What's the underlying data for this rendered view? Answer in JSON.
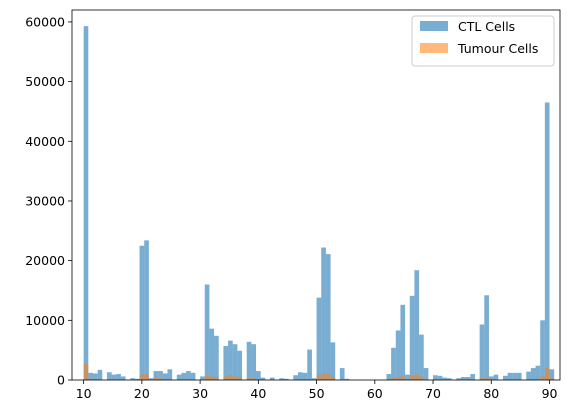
{
  "chart_data": {
    "type": "bar",
    "subtype": "overlaid-histogram",
    "xlim": [
      8.0,
      91.8
    ],
    "ylim": [
      0,
      62000
    ],
    "xticks": [
      10,
      20,
      30,
      40,
      50,
      60,
      70,
      80,
      90
    ],
    "yticks": [
      0,
      10000,
      20000,
      30000,
      40000,
      50000,
      60000
    ],
    "bin_width": 0.8,
    "legend_position": "upper-right",
    "grid": false,
    "series": [
      {
        "name": "CTL Cells",
        "color": "#1f77b4",
        "alpha": 0.6,
        "bins": [
          {
            "x": 10.0,
            "y": 59300
          },
          {
            "x": 10.8,
            "y": 1200
          },
          {
            "x": 11.6,
            "y": 1100
          },
          {
            "x": 12.4,
            "y": 1700
          },
          {
            "x": 14.0,
            "y": 1300
          },
          {
            "x": 14.8,
            "y": 900
          },
          {
            "x": 15.6,
            "y": 1000
          },
          {
            "x": 16.4,
            "y": 600
          },
          {
            "x": 18.0,
            "y": 300
          },
          {
            "x": 18.8,
            "y": 200
          },
          {
            "x": 19.6,
            "y": 22500
          },
          {
            "x": 20.4,
            "y": 23400
          },
          {
            "x": 21.2,
            "y": 300
          },
          {
            "x": 22.0,
            "y": 1500
          },
          {
            "x": 22.8,
            "y": 1500
          },
          {
            "x": 23.6,
            "y": 1100
          },
          {
            "x": 24.4,
            "y": 1800
          },
          {
            "x": 26.0,
            "y": 900
          },
          {
            "x": 26.8,
            "y": 1200
          },
          {
            "x": 27.6,
            "y": 1500
          },
          {
            "x": 28.4,
            "y": 1200
          },
          {
            "x": 30.0,
            "y": 600
          },
          {
            "x": 30.8,
            "y": 16000
          },
          {
            "x": 31.6,
            "y": 8600
          },
          {
            "x": 32.4,
            "y": 7400
          },
          {
            "x": 34.0,
            "y": 5700
          },
          {
            "x": 34.8,
            "y": 6600
          },
          {
            "x": 35.6,
            "y": 6000
          },
          {
            "x": 36.4,
            "y": 4900
          },
          {
            "x": 38.0,
            "y": 6400
          },
          {
            "x": 38.8,
            "y": 6000
          },
          {
            "x": 39.6,
            "y": 1500
          },
          {
            "x": 40.4,
            "y": 400
          },
          {
            "x": 42.0,
            "y": 400
          },
          {
            "x": 43.6,
            "y": 300
          },
          {
            "x": 44.4,
            "y": 200
          },
          {
            "x": 46.0,
            "y": 800
          },
          {
            "x": 46.8,
            "y": 1300
          },
          {
            "x": 47.6,
            "y": 1200
          },
          {
            "x": 48.4,
            "y": 5100
          },
          {
            "x": 49.2,
            "y": 300
          },
          {
            "x": 50.0,
            "y": 13800
          },
          {
            "x": 50.8,
            "y": 22200
          },
          {
            "x": 51.6,
            "y": 21100
          },
          {
            "x": 52.4,
            "y": 6300
          },
          {
            "x": 54.0,
            "y": 2000
          },
          {
            "x": 54.8,
            "y": 200
          },
          {
            "x": 62.0,
            "y": 1000
          },
          {
            "x": 62.8,
            "y": 5400
          },
          {
            "x": 63.6,
            "y": 8300
          },
          {
            "x": 64.4,
            "y": 12600
          },
          {
            "x": 65.2,
            "y": 900
          },
          {
            "x": 66.0,
            "y": 14100
          },
          {
            "x": 66.8,
            "y": 18400
          },
          {
            "x": 67.6,
            "y": 7600
          },
          {
            "x": 68.4,
            "y": 2000
          },
          {
            "x": 70.0,
            "y": 800
          },
          {
            "x": 70.8,
            "y": 700
          },
          {
            "x": 71.6,
            "y": 400
          },
          {
            "x": 72.4,
            "y": 300
          },
          {
            "x": 74.0,
            "y": 300
          },
          {
            "x": 74.8,
            "y": 500
          },
          {
            "x": 75.6,
            "y": 500
          },
          {
            "x": 76.4,
            "y": 1000
          },
          {
            "x": 78.0,
            "y": 9300
          },
          {
            "x": 78.8,
            "y": 14200
          },
          {
            "x": 79.6,
            "y": 600
          },
          {
            "x": 80.4,
            "y": 900
          },
          {
            "x": 82.0,
            "y": 700
          },
          {
            "x": 82.8,
            "y": 1200
          },
          {
            "x": 83.6,
            "y": 1200
          },
          {
            "x": 84.4,
            "y": 1200
          },
          {
            "x": 86.0,
            "y": 1400
          },
          {
            "x": 86.8,
            "y": 2000
          },
          {
            "x": 87.6,
            "y": 2400
          },
          {
            "x": 88.4,
            "y": 10000
          },
          {
            "x": 89.2,
            "y": 46500
          },
          {
            "x": 90.0,
            "y": 1800
          }
        ]
      },
      {
        "name": "Tumour Cells",
        "color": "#ff7f0e",
        "alpha": 0.55,
        "bins": [
          {
            "x": 10.0,
            "y": 2700
          },
          {
            "x": 10.8,
            "y": 200
          },
          {
            "x": 11.6,
            "y": 150
          },
          {
            "x": 19.6,
            "y": 900
          },
          {
            "x": 20.4,
            "y": 1000
          },
          {
            "x": 22.0,
            "y": 400
          },
          {
            "x": 22.8,
            "y": 300
          },
          {
            "x": 30.8,
            "y": 700
          },
          {
            "x": 31.6,
            "y": 600
          },
          {
            "x": 32.4,
            "y": 500
          },
          {
            "x": 34.0,
            "y": 600
          },
          {
            "x": 34.8,
            "y": 800
          },
          {
            "x": 35.6,
            "y": 600
          },
          {
            "x": 36.4,
            "y": 500
          },
          {
            "x": 38.0,
            "y": 300
          },
          {
            "x": 38.8,
            "y": 300
          },
          {
            "x": 50.0,
            "y": 800
          },
          {
            "x": 50.8,
            "y": 1100
          },
          {
            "x": 51.6,
            "y": 1000
          },
          {
            "x": 52.4,
            "y": 500
          },
          {
            "x": 62.8,
            "y": 400
          },
          {
            "x": 63.6,
            "y": 500
          },
          {
            "x": 64.4,
            "y": 600
          },
          {
            "x": 66.0,
            "y": 700
          },
          {
            "x": 66.8,
            "y": 900
          },
          {
            "x": 67.6,
            "y": 600
          },
          {
            "x": 78.0,
            "y": 300
          },
          {
            "x": 78.8,
            "y": 400
          },
          {
            "x": 88.4,
            "y": 600
          },
          {
            "x": 89.2,
            "y": 2000
          },
          {
            "x": 90.0,
            "y": 300
          }
        ]
      }
    ]
  }
}
